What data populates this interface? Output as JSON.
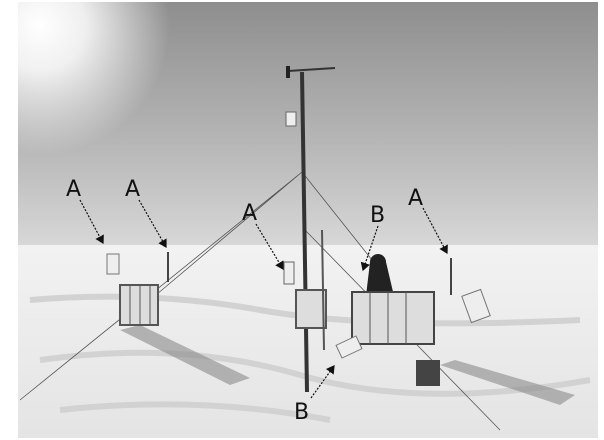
{
  "labels": [
    "A",
    "A",
    "A",
    "B",
    "A",
    "B"
  ]
}
